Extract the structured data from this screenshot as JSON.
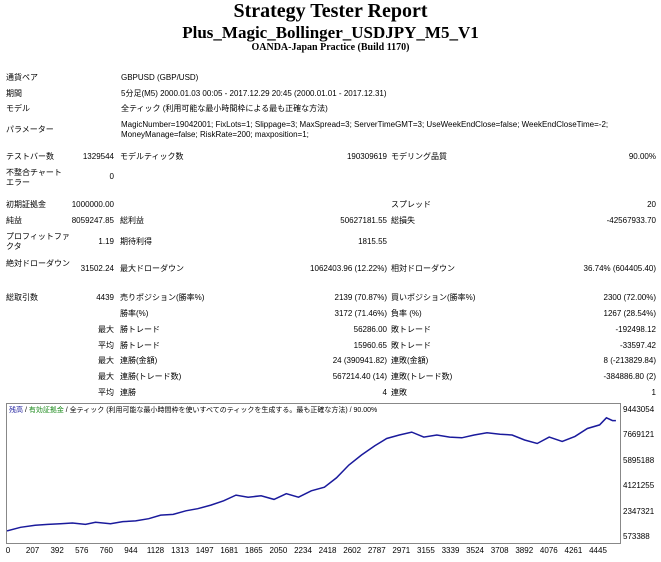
{
  "header": {
    "title": "Strategy Tester Report",
    "subtitle": "Plus_Magic_Bollinger_USDJPY_M5_V1",
    "build": "OANDA-Japan Practice (Build 1170)"
  },
  "info": [
    {
      "label": "通貨ペア",
      "value": "GBPUSD (GBP/USD)"
    },
    {
      "label": "期間",
      "value": "5分足(M5) 2000.01.03 00:05 - 2017.12.29 20:45 (2000.01.01 - 2017.12.31)"
    },
    {
      "label": "モデル",
      "value": "全ティック (利用可能な最小時間枠による最も正確な方法)"
    },
    {
      "label": "パラメーター",
      "value": "MagicNumber=19042001; FixLots=1; Slippage=3; MaxSpread=3; ServerTimeGMT=3; UseWeekEndClose=false; WeekEndCloseTime=-2; MoneyManage=false; RiskRate=200; maxposition=1;"
    }
  ],
  "row_bars": {
    "l1": "テストバー数",
    "v1": "1329544",
    "l2": "モデルティック数",
    "v2": "190309619",
    "l3": "モデリング品質",
    "v3": "90.00%"
  },
  "row_errors": {
    "label": "不整合チャートエラー",
    "value": "0"
  },
  "row_deposit": {
    "l1": "初期証拠金",
    "v1": "1000000.00",
    "l3": "スプレッド",
    "v3": "20"
  },
  "row_profit": {
    "l1": "純益",
    "v1": "8059247.85",
    "l2": "総利益",
    "v2": "50627181.55",
    "l3": "総損失",
    "v3": "-42567933.70"
  },
  "row_pf": {
    "l1": "プロフィットファクタ",
    "v1": "1.19",
    "l2": "期待利得",
    "v2": "1815.55"
  },
  "row_dd": {
    "l1": "絶対ドローダウン",
    "v1": "31502.24",
    "l2": "最大ドローダウン",
    "v2": "1062403.96 (12.22%)",
    "l3": "相対ドローダウン",
    "v3": "36.74% (604405.40)"
  },
  "trades": {
    "total_label": "総取引数",
    "total": "4439",
    "rows": [
      {
        "pre": "",
        "l2": "売りポジション(勝率%)",
        "v2": "2139 (70.87%)",
        "l3": "買いポジション(勝率%)",
        "v3": "2300 (72.00%)"
      },
      {
        "pre": "",
        "l2": "勝率(%)",
        "v2": "3172 (71.46%)",
        "l3": "負率 (%)",
        "v3": "1267 (28.54%)"
      },
      {
        "pre": "最大",
        "l2": "勝トレード",
        "v2": "56286.00",
        "l3": "敗トレード",
        "v3": "-192498.12"
      },
      {
        "pre": "平均",
        "l2": "勝トレード",
        "v2": "15960.65",
        "l3": "敗トレード",
        "v3": "-33597.42"
      },
      {
        "pre": "最大",
        "l2": "連勝(金額)",
        "v2": "24 (390941.82)",
        "l3": "連敗(金額)",
        "v3": "8 (-213829.84)"
      },
      {
        "pre": "最大",
        "l2": "連勝(トレード数)",
        "v2": "567214.40 (14)",
        "l3": "連敗(トレード数)",
        "v3": "-384886.80 (2)"
      },
      {
        "pre": "平均",
        "l2": "連勝",
        "v2": "4",
        "l3": "連敗",
        "v3": "1"
      }
    ]
  },
  "chart_data": {
    "type": "line",
    "legend_balance": "残高",
    "legend_sep": " / ",
    "legend_equity": "有効証拠金",
    "legend_rest": " / 全ティック (利用可能な最小時間枠を使いすべてのティックを生成する。最も正確な方法) / 90.00%",
    "x_ticks": [
      "0",
      "207",
      "392",
      "576",
      "760",
      "944",
      "1128",
      "1313",
      "1497",
      "1681",
      "1865",
      "2050",
      "2234",
      "2418",
      "2602",
      "2787",
      "2971",
      "3155",
      "3339",
      "3524",
      "3708",
      "3892",
      "4076",
      "4261",
      "4445"
    ],
    "y_ticks": [
      "9443054",
      "7669121",
      "5895188",
      "4121255",
      "2347321",
      "573388"
    ],
    "y_range": [
      573388,
      9443054
    ],
    "x_range": [
      0,
      4500
    ],
    "x": [
      0,
      100,
      207,
      300,
      392,
      480,
      576,
      650,
      760,
      850,
      944,
      1040,
      1128,
      1220,
      1313,
      1400,
      1497,
      1590,
      1681,
      1770,
      1865,
      1960,
      2050,
      2140,
      2234,
      2330,
      2418,
      2510,
      2602,
      2700,
      2787,
      2880,
      2971,
      3060,
      3155,
      3250,
      3339,
      3430,
      3524,
      3620,
      3708,
      3800,
      3892,
      3980,
      4076,
      4170,
      4261,
      4350,
      4400,
      4445,
      4470
    ],
    "y": [
      1000000,
      1250000,
      1400000,
      1450000,
      1500000,
      1550000,
      1450000,
      1600000,
      1500000,
      1650000,
      1700000,
      1850000,
      2100000,
      2150000,
      2400000,
      2550000,
      2800000,
      3100000,
      3500000,
      3350000,
      3450000,
      3200000,
      3600000,
      3350000,
      3800000,
      4050000,
      4700000,
      5600000,
      6300000,
      6950000,
      7450000,
      7700000,
      7900000,
      7550000,
      7700000,
      7550000,
      7500000,
      7700000,
      7850000,
      7750000,
      7700000,
      7350000,
      7100000,
      7550000,
      7250000,
      7600000,
      8150000,
      8400000,
      8900000,
      8700000,
      8700000
    ],
    "grid": false,
    "series_color": "#1a1a9c"
  }
}
